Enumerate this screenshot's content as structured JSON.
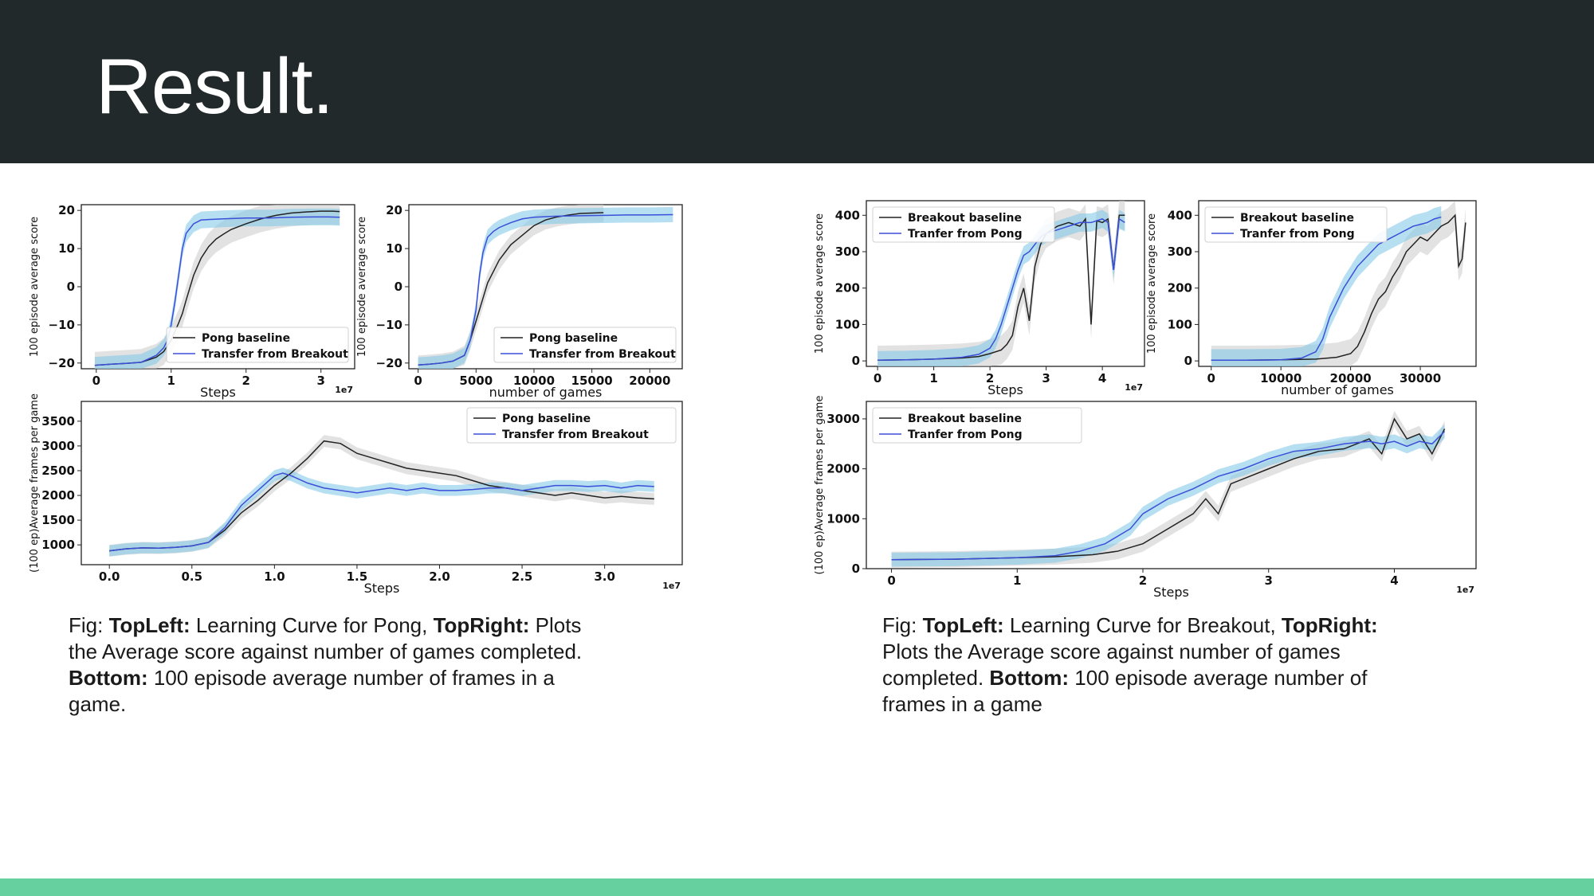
{
  "slide": {
    "title": "Result.",
    "colors": {
      "header": "#22292b",
      "footer": "#66d19e",
      "baseline": "#222222",
      "transfer": "#3b4fd8",
      "transfer_band": "#87c9ea",
      "baseline_band": "#cfcfcf"
    }
  },
  "captions": {
    "left": {
      "prefix": "Fig: ",
      "b1": "TopLeft:",
      "t1": " Learning Curve for Pong, ",
      "b2": "TopRight:",
      "t2": " Plots the Average score against number of games completed. ",
      "b3": "Bottom:",
      "t3": " 100 episode average number of frames in a game."
    },
    "right": {
      "prefix": "Fig: ",
      "b1": "TopLeft:",
      "t1": " Learning Curve for Breakout, ",
      "b2": "TopRight:",
      "t2": " Plots the Average score against number of games completed. ",
      "b3": "Bottom:",
      "t3": " 100 episode average number of frames in a game"
    }
  },
  "chart_data": [
    {
      "id": "pong-steps",
      "type": "line",
      "xlabel": "Steps",
      "ylabel": "100 episode average score",
      "xoffset": "1e7",
      "xlim": [
        -0.2,
        3.45
      ],
      "ylim": [
        -21.5,
        21.5
      ],
      "xticks": [
        {
          "v": 0,
          "t": "0"
        },
        {
          "v": 1,
          "t": "1"
        },
        {
          "v": 2,
          "t": "2"
        },
        {
          "v": 3,
          "t": "3"
        }
      ],
      "yticks": [
        {
          "v": -20,
          "t": "−20"
        },
        {
          "v": -10,
          "t": "−10"
        },
        {
          "v": 0,
          "t": "0"
        },
        {
          "v": 10,
          "t": "10"
        },
        {
          "v": 20,
          "t": "20"
        }
      ],
      "legend": {
        "position": "lower-right",
        "entries": [
          "Pong baseline",
          "Transfer from Breakout"
        ]
      },
      "series": [
        {
          "name": "Pong baseline",
          "band": 3.5,
          "x": [
            -0.02,
            0.2,
            0.4,
            0.6,
            0.8,
            0.9,
            1.0,
            1.1,
            1.15,
            1.2,
            1.3,
            1.4,
            1.5,
            1.6,
            1.7,
            1.8,
            2.0,
            2.2,
            2.4,
            2.6,
            2.8,
            3.0,
            3.15,
            3.25
          ],
          "y": [
            -20.6,
            -20.3,
            -20.1,
            -19.8,
            -18.5,
            -17.0,
            -14.0,
            -9.5,
            -7.0,
            -3.5,
            3.0,
            7.5,
            10.5,
            12.5,
            13.8,
            15.0,
            16.5,
            17.8,
            18.7,
            19.3,
            19.6,
            19.8,
            19.8,
            19.7
          ]
        },
        {
          "name": "Transfer from Breakout",
          "band": 2.2,
          "x": [
            -0.02,
            0.2,
            0.4,
            0.6,
            0.8,
            0.9,
            0.95,
            1.0,
            1.05,
            1.1,
            1.15,
            1.2,
            1.3,
            1.4,
            1.5,
            1.7,
            2.0,
            2.3,
            2.6,
            2.9,
            3.1,
            3.25
          ],
          "y": [
            -20.6,
            -20.3,
            -20.1,
            -19.8,
            -18.0,
            -16.0,
            -14.0,
            -10.0,
            -4.0,
            3.0,
            10.0,
            14.0,
            16.5,
            17.5,
            17.6,
            17.8,
            18.0,
            18.0,
            18.2,
            18.3,
            18.3,
            18.2
          ]
        }
      ]
    },
    {
      "id": "pong-games",
      "type": "line",
      "xlabel": "number of games",
      "ylabel": "100 episode average score",
      "xoffset": "",
      "xlim": [
        -800,
        22800
      ],
      "ylim": [
        -21.5,
        21.5
      ],
      "xticks": [
        {
          "v": 0,
          "t": "0"
        },
        {
          "v": 5000,
          "t": "5000"
        },
        {
          "v": 10000,
          "t": "10000"
        },
        {
          "v": 15000,
          "t": "15000"
        },
        {
          "v": 20000,
          "t": "20000"
        }
      ],
      "yticks": [
        {
          "v": -20,
          "t": "−20"
        },
        {
          "v": -10,
          "t": "−10"
        },
        {
          "v": 0,
          "t": "0"
        },
        {
          "v": 10,
          "t": "10"
        },
        {
          "v": 20,
          "t": "20"
        }
      ],
      "legend": {
        "position": "lower-right",
        "entries": [
          "Pong baseline",
          "Transfer from Breakout"
        ]
      },
      "series": [
        {
          "name": "Pong baseline",
          "band": 2.5,
          "x": [
            0,
            1000,
            2000,
            3000,
            4000,
            4500,
            5000,
            5500,
            6000,
            6500,
            7000,
            7500,
            8000,
            9000,
            10000,
            11000,
            12000,
            13000,
            14000,
            15000,
            16000
          ],
          "y": [
            -20.5,
            -20.3,
            -20.0,
            -19.5,
            -18.0,
            -14.0,
            -9.0,
            -4.0,
            1.0,
            4.0,
            7.0,
            9.0,
            11.0,
            13.5,
            16.0,
            17.5,
            18.3,
            18.8,
            19.2,
            19.3,
            19.4
          ]
        },
        {
          "name": "Transfer from Breakout",
          "band": 2.0,
          "x": [
            0,
            1000,
            2000,
            3000,
            4000,
            4500,
            5000,
            5300,
            5600,
            6000,
            6500,
            7000,
            8000,
            9000,
            10000,
            12000,
            14000,
            16000,
            18000,
            20000,
            22000
          ],
          "y": [
            -20.5,
            -20.3,
            -20.0,
            -19.5,
            -18.0,
            -14.0,
            -6.0,
            3.0,
            9.0,
            13.0,
            14.5,
            15.5,
            16.8,
            17.8,
            18.2,
            18.5,
            18.6,
            18.7,
            18.8,
            18.8,
            18.9
          ]
        }
      ]
    },
    {
      "id": "pong-frames",
      "type": "line",
      "xlabel": "Steps",
      "ylabel": "(100 ep)Average frames per game",
      "xoffset": "1e7",
      "xlim": [
        -0.17,
        3.47
      ],
      "ylim": [
        600,
        3900
      ],
      "xticks": [
        {
          "v": 0,
          "t": "0.0"
        },
        {
          "v": 0.5,
          "t": "0.5"
        },
        {
          "v": 1.0,
          "t": "1.0"
        },
        {
          "v": 1.5,
          "t": "1.5"
        },
        {
          "v": 2.0,
          "t": "2.0"
        },
        {
          "v": 2.5,
          "t": "2.5"
        },
        {
          "v": 3.0,
          "t": "3.0"
        }
      ],
      "yticks": [
        {
          "v": 1000,
          "t": "1000"
        },
        {
          "v": 1500,
          "t": "1500"
        },
        {
          "v": 2000,
          "t": "2000"
        },
        {
          "v": 2500,
          "t": "2500"
        },
        {
          "v": 3000,
          "t": "3000"
        },
        {
          "v": 3500,
          "t": "3500"
        }
      ],
      "legend": {
        "position": "upper-right",
        "entries": [
          "Pong baseline",
          "Transfer from Breakout"
        ]
      },
      "series": [
        {
          "name": "Pong baseline",
          "band": 120,
          "x": [
            0,
            0.1,
            0.2,
            0.3,
            0.4,
            0.5,
            0.6,
            0.7,
            0.8,
            0.9,
            1.0,
            1.1,
            1.2,
            1.3,
            1.4,
            1.5,
            1.6,
            1.7,
            1.8,
            1.9,
            2.0,
            2.1,
            2.2,
            2.3,
            2.4,
            2.5,
            2.6,
            2.7,
            2.8,
            2.9,
            3.0,
            3.1,
            3.2,
            3.3
          ],
          "y": [
            880,
            920,
            940,
            935,
            950,
            980,
            1050,
            1300,
            1650,
            1900,
            2200,
            2450,
            2750,
            3100,
            3050,
            2850,
            2750,
            2650,
            2550,
            2500,
            2450,
            2400,
            2300,
            2200,
            2150,
            2100,
            2050,
            2000,
            2050,
            2000,
            1950,
            1980,
            1950,
            1930
          ]
        },
        {
          "name": "Transfer from Breakout",
          "band": 110,
          "x": [
            0,
            0.1,
            0.2,
            0.3,
            0.4,
            0.5,
            0.6,
            0.7,
            0.8,
            0.9,
            1.0,
            1.05,
            1.1,
            1.2,
            1.3,
            1.4,
            1.5,
            1.6,
            1.7,
            1.8,
            1.9,
            2.0,
            2.1,
            2.2,
            2.3,
            2.4,
            2.5,
            2.6,
            2.7,
            2.8,
            2.9,
            3.0,
            3.1,
            3.2,
            3.3
          ],
          "y": [
            880,
            920,
            940,
            935,
            950,
            980,
            1050,
            1350,
            1800,
            2100,
            2400,
            2450,
            2400,
            2250,
            2150,
            2100,
            2050,
            2100,
            2150,
            2100,
            2150,
            2100,
            2100,
            2120,
            2150,
            2150,
            2100,
            2150,
            2200,
            2200,
            2180,
            2200,
            2150,
            2200,
            2180
          ]
        }
      ]
    },
    {
      "id": "breakout-steps",
      "type": "line",
      "xlabel": "Steps",
      "ylabel": "100 episode average score",
      "xoffset": "1e7",
      "xlim": [
        -0.2,
        4.75
      ],
      "ylim": [
        -15,
        440
      ],
      "xticks": [
        {
          "v": 0,
          "t": "0"
        },
        {
          "v": 1,
          "t": "1"
        },
        {
          "v": 2,
          "t": "2"
        },
        {
          "v": 3,
          "t": "3"
        },
        {
          "v": 4,
          "t": "4"
        }
      ],
      "yticks": [
        {
          "v": 0,
          "t": "0"
        },
        {
          "v": 100,
          "t": "100"
        },
        {
          "v": 200,
          "t": "200"
        },
        {
          "v": 300,
          "t": "300"
        },
        {
          "v": 400,
          "t": "400"
        }
      ],
      "legend": {
        "position": "upper-left",
        "entries": [
          "Breakout baseline",
          "Tranfer from Pong"
        ]
      },
      "series": [
        {
          "name": "Breakout baseline",
          "band": 40,
          "x": [
            0,
            0.5,
            1.0,
            1.5,
            1.8,
            2.0,
            2.2,
            2.3,
            2.4,
            2.5,
            2.6,
            2.7,
            2.8,
            2.9,
            3.0,
            3.2,
            3.4,
            3.6,
            3.7,
            3.8,
            3.9,
            4.0,
            4.1,
            4.2,
            4.3,
            4.4
          ],
          "y": [
            2,
            3,
            5,
            8,
            12,
            20,
            30,
            45,
            70,
            150,
            200,
            110,
            260,
            320,
            350,
            370,
            380,
            370,
            390,
            100,
            385,
            380,
            390,
            250,
            400,
            400
          ]
        },
        {
          "name": "Tranfer from Pong",
          "band": 25,
          "x": [
            0,
            0.5,
            1.0,
            1.5,
            1.8,
            2.0,
            2.1,
            2.2,
            2.3,
            2.4,
            2.5,
            2.6,
            2.7,
            2.8,
            2.9,
            3.0,
            3.2,
            3.4,
            3.6,
            3.8,
            4.0,
            4.1,
            4.2,
            4.3,
            4.4
          ],
          "y": [
            2,
            3,
            5,
            10,
            18,
            35,
            60,
            100,
            150,
            200,
            250,
            290,
            300,
            320,
            340,
            350,
            360,
            370,
            380,
            380,
            390,
            380,
            250,
            390,
            380
          ]
        }
      ]
    },
    {
      "id": "breakout-games",
      "type": "line",
      "xlabel": "number of games",
      "ylabel": "100 episode average score",
      "xoffset": "",
      "xlim": [
        -1800,
        38000
      ],
      "ylim": [
        -15,
        440
      ],
      "xticks": [
        {
          "v": 0,
          "t": "0"
        },
        {
          "v": 10000,
          "t": "10000"
        },
        {
          "v": 20000,
          "t": "20000"
        },
        {
          "v": 30000,
          "t": "30000"
        }
      ],
      "yticks": [
        {
          "v": 0,
          "t": "0"
        },
        {
          "v": 100,
          "t": "100"
        },
        {
          "v": 200,
          "t": "200"
        },
        {
          "v": 300,
          "t": "300"
        },
        {
          "v": 400,
          "t": "400"
        }
      ],
      "legend": {
        "position": "upper-left",
        "entries": [
          "Breakout baseline",
          "Tranfer from Pong"
        ]
      },
      "series": [
        {
          "name": "Breakout baseline",
          "band": 40,
          "x": [
            0,
            5000,
            10000,
            15000,
            18000,
            20000,
            21000,
            22000,
            23000,
            24000,
            25000,
            26000,
            27000,
            28000,
            29000,
            30000,
            31000,
            32000,
            33000,
            34000,
            35000,
            35500,
            36000,
            36500
          ],
          "y": [
            2,
            2,
            3,
            5,
            10,
            20,
            40,
            80,
            130,
            170,
            190,
            230,
            260,
            300,
            320,
            340,
            330,
            350,
            370,
            380,
            400,
            260,
            280,
            380
          ]
        },
        {
          "name": "Tranfer from Pong",
          "band": 30,
          "x": [
            0,
            5000,
            10000,
            13000,
            15000,
            16000,
            17000,
            18000,
            19000,
            20000,
            21000,
            22000,
            23000,
            24000,
            25000,
            26000,
            27000,
            28000,
            29000,
            30000,
            31000,
            32000,
            33000
          ],
          "y": [
            2,
            2,
            3,
            8,
            25,
            60,
            120,
            160,
            200,
            230,
            260,
            280,
            300,
            320,
            330,
            340,
            350,
            360,
            370,
            375,
            380,
            390,
            395
          ]
        }
      ]
    },
    {
      "id": "breakout-frames",
      "type": "line",
      "xlabel": "Steps",
      "ylabel": "(100 ep)Average frames per game",
      "xoffset": "1e7",
      "xlim": [
        -0.2,
        4.65
      ],
      "ylim": [
        0,
        3350
      ],
      "xticks": [
        {
          "v": 0,
          "t": "0"
        },
        {
          "v": 1,
          "t": "1"
        },
        {
          "v": 2,
          "t": "2"
        },
        {
          "v": 3,
          "t": "3"
        },
        {
          "v": 4,
          "t": "4"
        }
      ],
      "yticks": [
        {
          "v": 0,
          "t": "0"
        },
        {
          "v": 1000,
          "t": "1000"
        },
        {
          "v": 2000,
          "t": "2000"
        },
        {
          "v": 3000,
          "t": "3000"
        }
      ],
      "legend": {
        "position": "upper-left",
        "entries": [
          "Breakout baseline",
          "Tranfer from Pong"
        ]
      },
      "series": [
        {
          "name": "Breakout baseline",
          "band": 160,
          "x": [
            0,
            0.5,
            1.0,
            1.3,
            1.6,
            1.8,
            2.0,
            2.2,
            2.4,
            2.5,
            2.6,
            2.7,
            2.8,
            3.0,
            3.2,
            3.4,
            3.6,
            3.7,
            3.8,
            3.9,
            4.0,
            4.1,
            4.2,
            4.3,
            4.4
          ],
          "y": [
            180,
            190,
            220,
            240,
            280,
            350,
            500,
            800,
            1100,
            1400,
            1100,
            1700,
            1800,
            2000,
            2200,
            2350,
            2400,
            2500,
            2600,
            2300,
            3000,
            2600,
            2700,
            2300,
            2800
          ]
        },
        {
          "name": "Tranfer from Pong",
          "band": 140,
          "x": [
            0,
            0.5,
            1.0,
            1.3,
            1.5,
            1.7,
            1.9,
            2.0,
            2.2,
            2.4,
            2.6,
            2.8,
            3.0,
            3.2,
            3.4,
            3.6,
            3.8,
            3.9,
            4.0,
            4.1,
            4.2,
            4.3,
            4.4
          ],
          "y": [
            180,
            190,
            220,
            260,
            350,
            500,
            800,
            1100,
            1400,
            1600,
            1850,
            2000,
            2200,
            2350,
            2400,
            2500,
            2550,
            2500,
            2550,
            2450,
            2550,
            2500,
            2750
          ]
        }
      ]
    }
  ]
}
